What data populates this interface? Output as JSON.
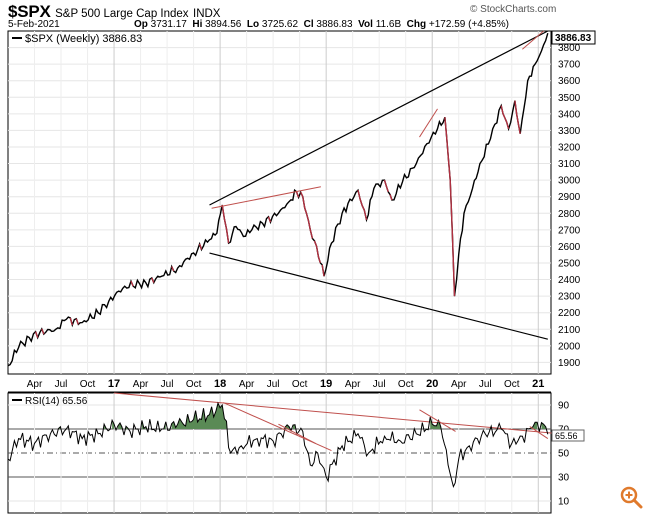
{
  "header": {
    "symbol": "$SPX",
    "name": "S&P 500 Large Cap Index",
    "exchange": "INDX",
    "date": "5-Feb-2021",
    "ohlc": [
      {
        "label": "Op",
        "value": "3731.17"
      },
      {
        "label": "Hi",
        "value": "3894.56"
      },
      {
        "label": "Lo",
        "value": "3725.62"
      },
      {
        "label": "Cl",
        "value": "3886.83"
      },
      {
        "label": "Vol",
        "value": "11.6B"
      },
      {
        "label": "Chg",
        "value": "+172.59 (+4.85%)"
      }
    ],
    "brand": "© StockCharts.com"
  },
  "colors": {
    "price_line": "#000000",
    "red_segments": "#b03040",
    "trendline": "#000000",
    "annotation_red": "#c0504d",
    "rsi_fill": "#5a8a55",
    "last_value_bg": "#ffffff"
  },
  "chart_data": [
    {
      "type": "line",
      "title": "$SPX (Weekly) 3886.83",
      "legend": "$SPX (Weekly) 3886.83",
      "legend_position": "top-left",
      "last_value_label": "3886.83",
      "xlabel": "",
      "ylabel": "",
      "ylim": [
        1830,
        3900
      ],
      "x_ticks": [
        "Apr",
        "Jul",
        "Oct",
        "17",
        "Apr",
        "Jul",
        "Oct",
        "18",
        "Apr",
        "Jul",
        "Oct",
        "19",
        "Apr",
        "Jul",
        "Oct",
        "20",
        "Apr",
        "Jul",
        "Oct",
        "21"
      ],
      "y_ticks": [
        1900,
        2000,
        2100,
        2200,
        2300,
        2400,
        2500,
        2600,
        2700,
        2800,
        2900,
        3000,
        3100,
        3200,
        3300,
        3400,
        3500,
        3600,
        3700,
        3800
      ],
      "series": [
        {
          "name": "$SPX Weekly Close",
          "x_time_years": [
            2016.0,
            2016.1,
            2016.2,
            2016.3,
            2016.45,
            2016.55,
            2016.7,
            2016.85,
            2016.95,
            2017.1,
            2017.3,
            2017.45,
            2017.6,
            2017.75,
            2017.9,
            2017.97,
            2018.02,
            2018.08,
            2018.15,
            2018.22,
            2018.3,
            2018.4,
            2018.55,
            2018.65,
            2018.72,
            2018.78,
            2018.85,
            2018.91,
            2018.98,
            2019.05,
            2019.15,
            2019.3,
            2019.38,
            2019.45,
            2019.55,
            2019.62,
            2019.72,
            2019.85,
            2019.95,
            2020.05,
            2020.12,
            2020.17,
            2020.21,
            2020.25,
            2020.3,
            2020.38,
            2020.45,
            2020.55,
            2020.65,
            2020.72,
            2020.78,
            2020.83,
            2020.9,
            2020.97,
            2021.03,
            2021.09
          ],
          "values": [
            1880,
            1990,
            2050,
            2080,
            2100,
            2160,
            2140,
            2200,
            2270,
            2360,
            2380,
            2420,
            2470,
            2560,
            2640,
            2680,
            2850,
            2620,
            2720,
            2660,
            2700,
            2740,
            2800,
            2870,
            2930,
            2900,
            2700,
            2600,
            2420,
            2620,
            2800,
            2940,
            2760,
            2950,
            3000,
            2880,
            2990,
            3100,
            3220,
            3310,
            3380,
            3000,
            2300,
            2550,
            2800,
            2950,
            3100,
            3250,
            3450,
            3310,
            3480,
            3280,
            3600,
            3700,
            3780,
            3886.83
          ]
        }
      ],
      "trendlines": [
        {
          "name": "upper-trendline",
          "from": [
            2017.9,
            2850
          ],
          "to": [
            2021.09,
            3900
          ]
        },
        {
          "name": "lower-trendline",
          "from": [
            2017.9,
            2560
          ],
          "to": [
            2021.09,
            2040
          ]
        }
      ]
    },
    {
      "type": "line",
      "title": "RSI(14) 65.56",
      "legend": "RSI(14) 65.56",
      "last_value_label": "65.56",
      "ylim": [
        0,
        100
      ],
      "y_ticks": [
        10,
        30,
        50,
        70,
        90
      ],
      "reference_lines": [
        30,
        50,
        70
      ],
      "series": [
        {
          "name": "RSI(14)",
          "x_time_years": [
            2016.0,
            2016.1,
            2016.25,
            2016.4,
            2016.55,
            2016.7,
            2016.85,
            2017.0,
            2017.15,
            2017.3,
            2017.45,
            2017.6,
            2017.75,
            2017.9,
            2018.02,
            2018.1,
            2018.2,
            2018.35,
            2018.5,
            2018.65,
            2018.78,
            2018.85,
            2018.92,
            2019.0,
            2019.15,
            2019.3,
            2019.4,
            2019.55,
            2019.7,
            2019.85,
            2020.0,
            2020.08,
            2020.15,
            2020.2,
            2020.25,
            2020.35,
            2020.5,
            2020.65,
            2020.75,
            2020.85,
            2020.95,
            2021.05,
            2021.09
          ],
          "values": [
            45,
            62,
            58,
            66,
            70,
            62,
            66,
            74,
            68,
            72,
            70,
            74,
            78,
            82,
            90,
            50,
            56,
            62,
            60,
            72,
            68,
            40,
            50,
            30,
            56,
            66,
            50,
            64,
            60,
            66,
            74,
            72,
            40,
            22,
            45,
            56,
            66,
            70,
            58,
            64,
            72,
            74,
            65.56
          ]
        }
      ],
      "trendlines": [
        {
          "name": "rsi-long-downtrend",
          "from": [
            2017.0,
            100
          ],
          "to": [
            2021.2,
            66
          ]
        }
      ]
    }
  ]
}
